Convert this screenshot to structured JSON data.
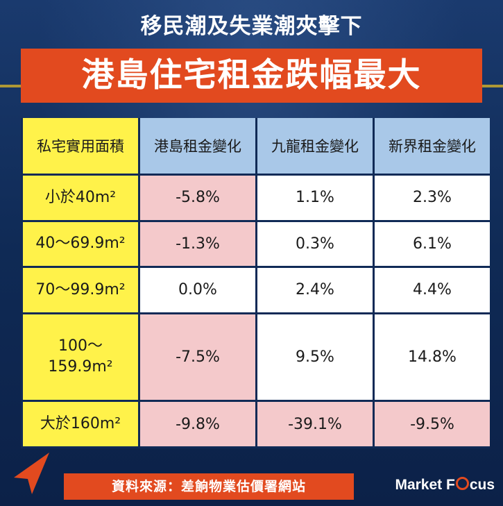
{
  "title_top": "移民潮及失業潮夾擊下",
  "headline": "港島住宅租金跌幅最大",
  "table": {
    "corner": "私宅實用面積",
    "columns": [
      "港島租金變化",
      "九龍租金變化",
      "新界租金變化"
    ],
    "rows": [
      {
        "label": "小於40m²",
        "values": [
          "-5.8%",
          "1.1%",
          "2.3%"
        ]
      },
      {
        "label": "40～69.9m²",
        "values": [
          "-1.3%",
          "0.3%",
          "6.1%"
        ]
      },
      {
        "label": "70～99.9m²",
        "values": [
          "0.0%",
          "2.4%",
          "4.4%"
        ]
      },
      {
        "label": "100～\n159.9m²",
        "values": [
          "-7.5%",
          "9.5%",
          "14.8%"
        ]
      },
      {
        "label": "大於160m²",
        "values": [
          "-9.8%",
          "-39.1%",
          "-9.5%"
        ]
      }
    ]
  },
  "footer": "資料來源：差餉物業估價署網站",
  "brand": {
    "part1": "Market F",
    "part2": "cus"
  },
  "colors": {
    "accent": "#e24a1f",
    "header_yellow": "#fff24a",
    "header_blue": "#a9c8e8",
    "negative_cell": "#f4c9cb",
    "background": "#102a56"
  },
  "icons": {
    "arrow": "arrow-pointer-icon",
    "brand_o": "focus-ring-icon"
  }
}
